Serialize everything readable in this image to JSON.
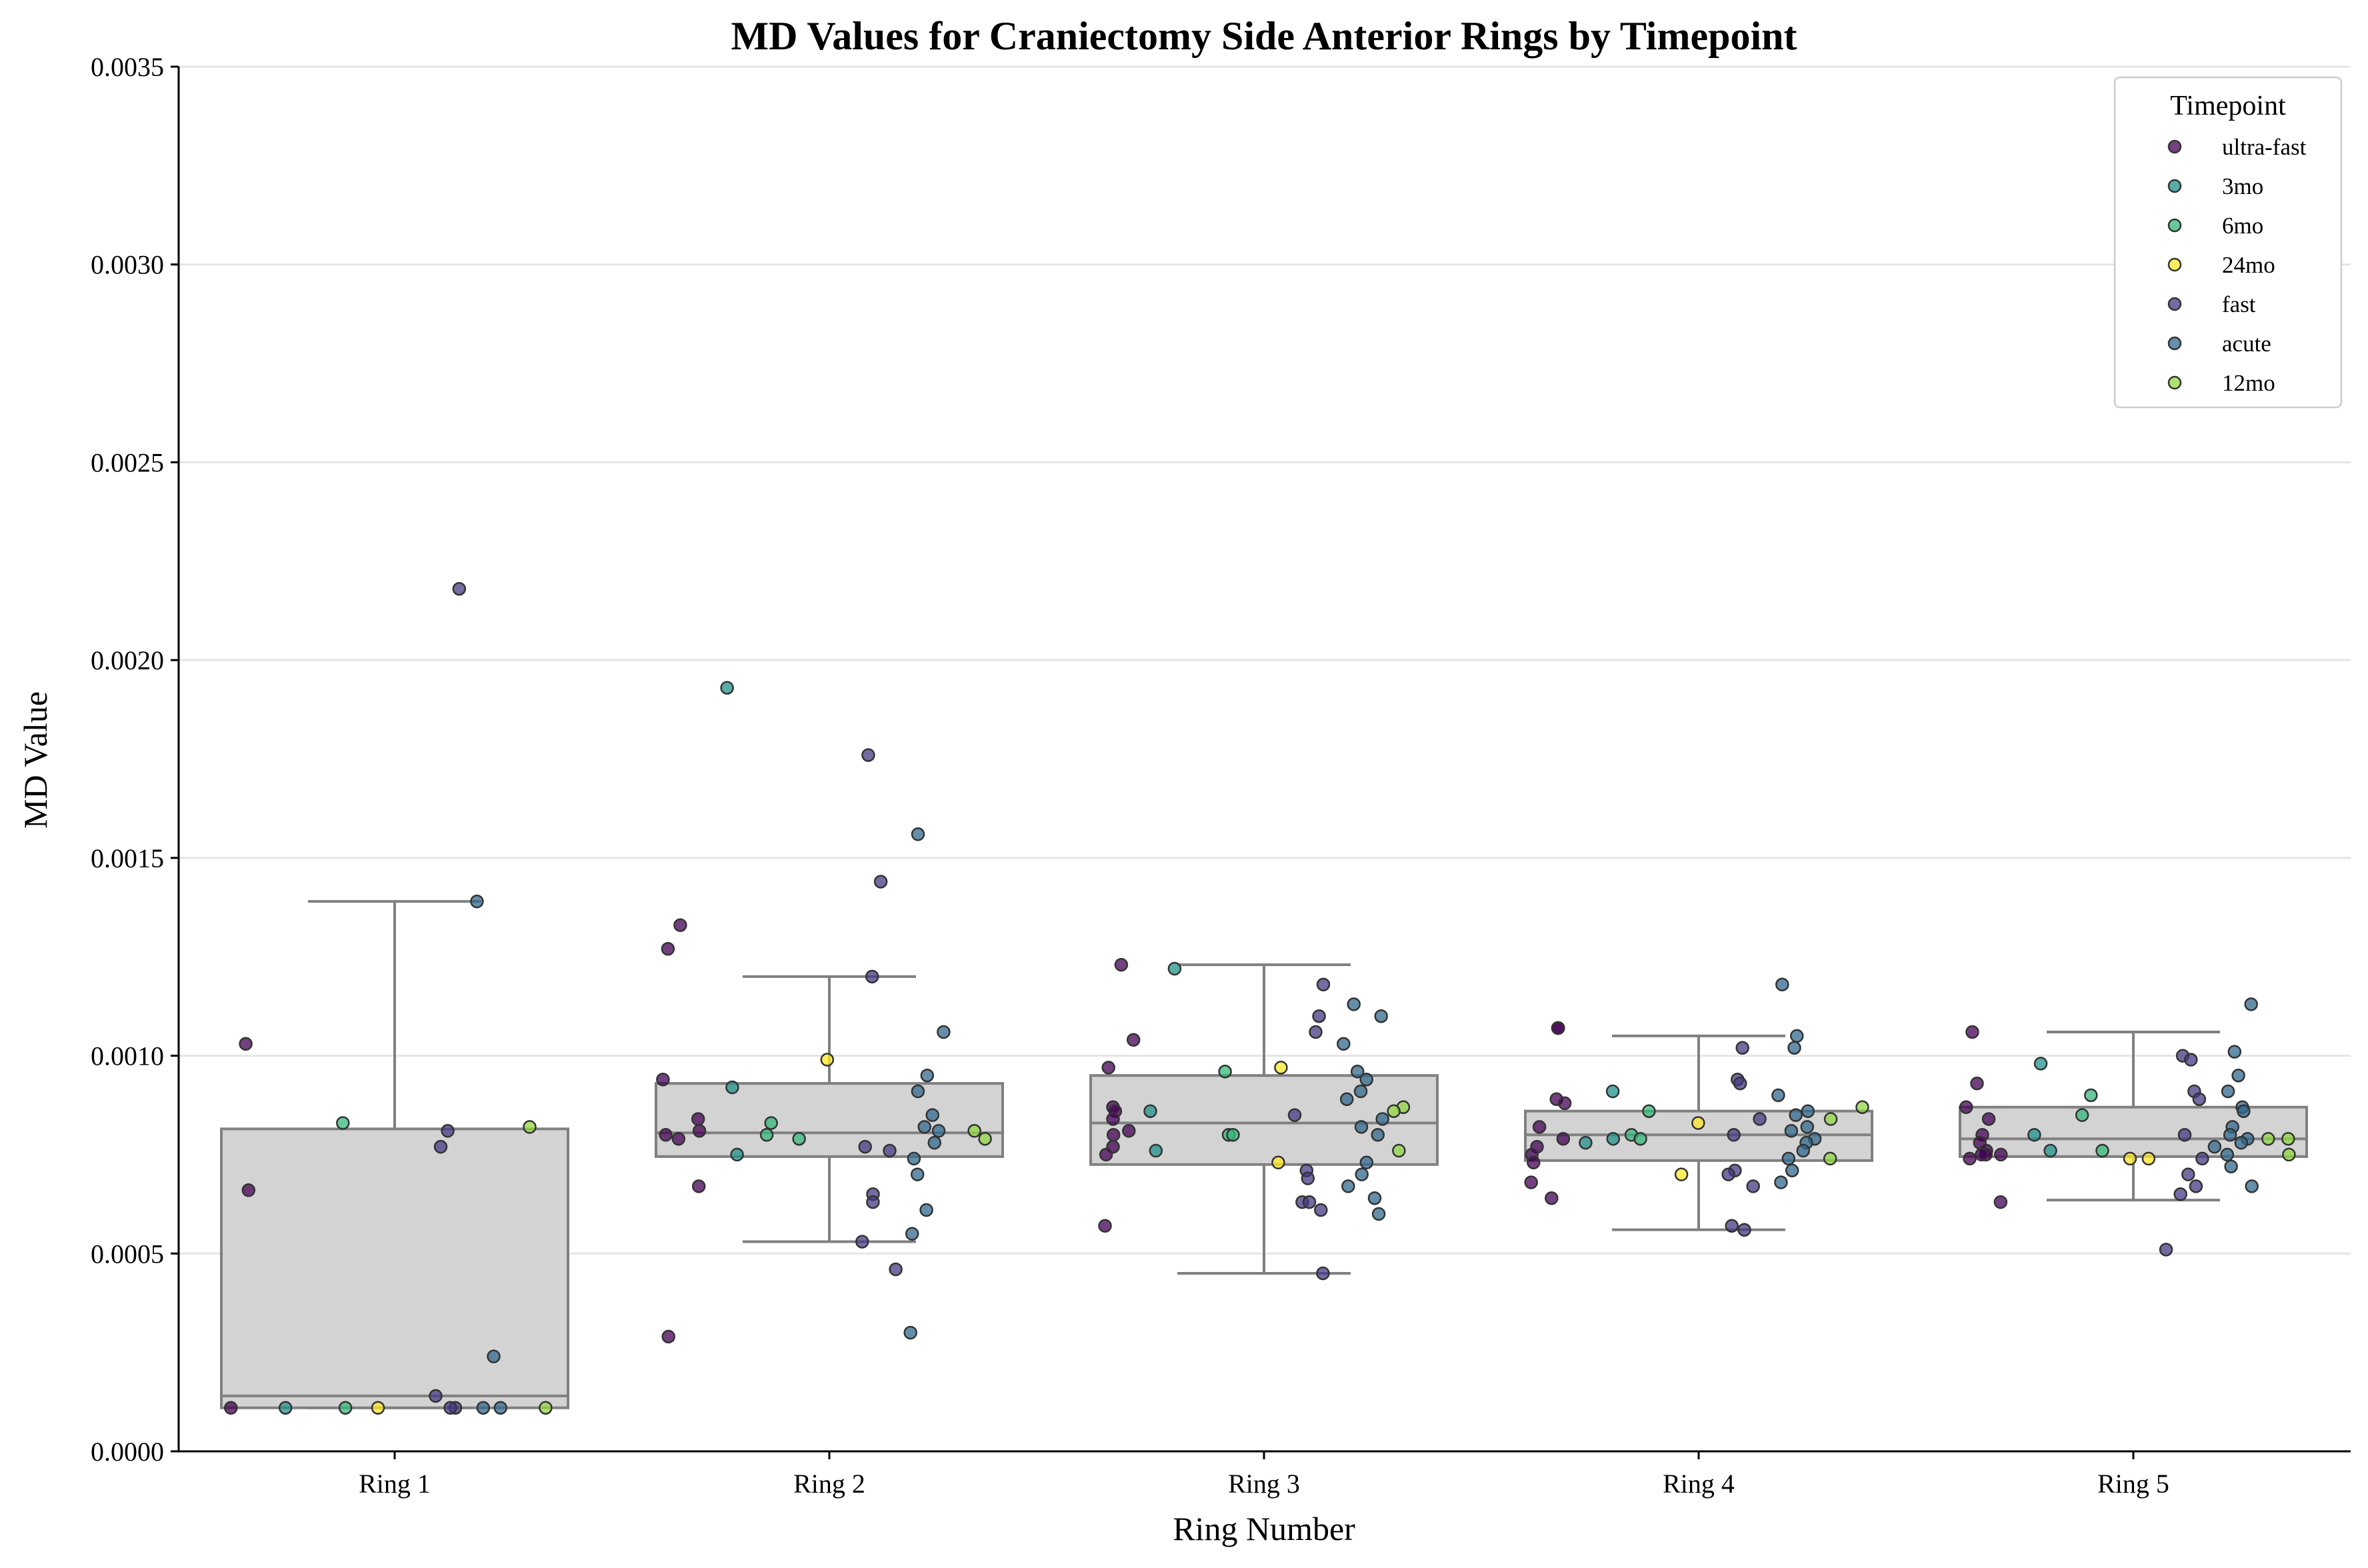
{
  "chart_data": {
    "type": "box+strip",
    "title": "MD Values for Craniectomy Side Anterior Rings by Timepoint",
    "xlabel": "Ring Number",
    "ylabel": "MD Value",
    "ylim": [
      0,
      0.0035
    ],
    "yticks": [
      "0.0000",
      "0.0005",
      "0.0010",
      "0.0015",
      "0.0020",
      "0.0025",
      "0.0030",
      "0.0035"
    ],
    "ytick_values": [
      0,
      0.0005,
      0.001,
      0.0015,
      0.002,
      0.0025,
      0.003,
      0.0035
    ],
    "grid": "horizontal",
    "legend": {
      "title": "Timepoint",
      "placement": "top-right",
      "entries": [
        {
          "name": "ultra-fast",
          "color": "#440154"
        },
        {
          "name": "3mo",
          "color": "#21918c"
        },
        {
          "name": "6mo",
          "color": "#35b779"
        },
        {
          "name": "24mo",
          "color": "#fde725"
        },
        {
          "name": "fast",
          "color": "#443983"
        },
        {
          "name": "acute",
          "color": "#31688e"
        },
        {
          "name": "12mo",
          "color": "#90d743"
        }
      ]
    },
    "categories": [
      "Ring 1",
      "Ring 2",
      "Ring 3",
      "Ring 4",
      "Ring 5"
    ],
    "boxes": [
      {
        "category": "Ring 1",
        "whisker_low": 0.00011,
        "q1": 0.00011,
        "median": 0.00014,
        "q3": 0.000815,
        "whisker_high": 0.00139
      },
      {
        "category": "Ring 2",
        "whisker_low": 0.00053,
        "q1": 0.000745,
        "median": 0.000805,
        "q3": 0.00093,
        "whisker_high": 0.0012
      },
      {
        "category": "Ring 3",
        "whisker_low": 0.00045,
        "q1": 0.000725,
        "median": 0.00083,
        "q3": 0.00095,
        "whisker_high": 0.00123
      },
      {
        "category": "Ring 4",
        "whisker_low": 0.00056,
        "q1": 0.000735,
        "median": 0.0008,
        "q3": 0.00086,
        "whisker_high": 0.00105
      },
      {
        "category": "Ring 5",
        "whisker_low": 0.000635,
        "q1": 0.000745,
        "median": 0.00079,
        "q3": 0.00087,
        "whisker_high": 0.00106
      }
    ],
    "points": [
      {
        "ring": 1,
        "tp": "ultra-fast",
        "v": [
          0.00103,
          0.00066,
          0.00011
        ]
      },
      {
        "ring": 1,
        "tp": "3mo",
        "v": [
          0.00011
        ]
      },
      {
        "ring": 1,
        "tp": "6mo",
        "v": [
          0.00083,
          0.00011
        ]
      },
      {
        "ring": 1,
        "tp": "24mo",
        "v": [
          0.00011
        ]
      },
      {
        "ring": 1,
        "tp": "fast",
        "v": [
          0.00218,
          0.00081,
          0.00077,
          0.00014,
          0.00011,
          0.00011
        ]
      },
      {
        "ring": 1,
        "tp": "acute",
        "v": [
          0.00139,
          0.00024,
          0.00011,
          0.00011
        ]
      },
      {
        "ring": 1,
        "tp": "12mo",
        "v": [
          0.00082,
          0.00011
        ]
      },
      {
        "ring": 2,
        "tp": "ultra-fast",
        "v": [
          0.00133,
          0.00127,
          0.00094,
          0.00084,
          0.00081,
          0.0008,
          0.00079,
          0.00067,
          0.00029
        ]
      },
      {
        "ring": 2,
        "tp": "3mo",
        "v": [
          0.00193,
          0.00092,
          0.00075
        ]
      },
      {
        "ring": 2,
        "tp": "6mo",
        "v": [
          0.00083,
          0.0008,
          0.00079
        ]
      },
      {
        "ring": 2,
        "tp": "24mo",
        "v": [
          0.00099
        ]
      },
      {
        "ring": 2,
        "tp": "fast",
        "v": [
          0.00176,
          0.00144,
          0.0012,
          0.00077,
          0.00076,
          0.00065,
          0.00063,
          0.00053,
          0.00046
        ]
      },
      {
        "ring": 2,
        "tp": "acute",
        "v": [
          0.00156,
          0.00106,
          0.00095,
          0.00091,
          0.00085,
          0.00082,
          0.00081,
          0.00078,
          0.00074,
          0.0007,
          0.00061,
          0.00055,
          0.0003
        ]
      },
      {
        "ring": 2,
        "tp": "12mo",
        "v": [
          0.00081,
          0.00079
        ]
      },
      {
        "ring": 3,
        "tp": "ultra-fast",
        "v": [
          0.00123,
          0.00104,
          0.00097,
          0.00087,
          0.00086,
          0.00084,
          0.00081,
          0.0008,
          0.00077,
          0.00075,
          0.00057
        ]
      },
      {
        "ring": 3,
        "tp": "3mo",
        "v": [
          0.00122,
          0.00086,
          0.00076
        ]
      },
      {
        "ring": 3,
        "tp": "6mo",
        "v": [
          0.00096,
          0.0008,
          0.0008
        ]
      },
      {
        "ring": 3,
        "tp": "24mo",
        "v": [
          0.00097,
          0.00073
        ]
      },
      {
        "ring": 3,
        "tp": "fast",
        "v": [
          0.00118,
          0.0011,
          0.00106,
          0.00085,
          0.00071,
          0.00069,
          0.00063,
          0.00063,
          0.00061,
          0.00045
        ]
      },
      {
        "ring": 3,
        "tp": "acute",
        "v": [
          0.00113,
          0.0011,
          0.00103,
          0.00096,
          0.00094,
          0.00091,
          0.00089,
          0.00084,
          0.00082,
          0.0008,
          0.00073,
          0.0007,
          0.00067,
          0.00064,
          0.0006
        ]
      },
      {
        "ring": 3,
        "tp": "12mo",
        "v": [
          0.00087,
          0.00086,
          0.00076
        ]
      },
      {
        "ring": 4,
        "tp": "ultra-fast",
        "v": [
          0.00107,
          0.00107,
          0.00089,
          0.00088,
          0.00082,
          0.00079,
          0.00077,
          0.00075,
          0.00073,
          0.00068,
          0.00064
        ]
      },
      {
        "ring": 4,
        "tp": "3mo",
        "v": [
          0.00091,
          0.00079,
          0.00078
        ]
      },
      {
        "ring": 4,
        "tp": "6mo",
        "v": [
          0.00086,
          0.0008,
          0.00079
        ]
      },
      {
        "ring": 4,
        "tp": "24mo",
        "v": [
          0.00083,
          0.0007
        ]
      },
      {
        "ring": 4,
        "tp": "fast",
        "v": [
          0.00102,
          0.00094,
          0.00093,
          0.00084,
          0.0008,
          0.00071,
          0.0007,
          0.00067,
          0.00057,
          0.00056
        ]
      },
      {
        "ring": 4,
        "tp": "acute",
        "v": [
          0.00118,
          0.00105,
          0.00102,
          0.0009,
          0.00086,
          0.00085,
          0.00082,
          0.00081,
          0.00079,
          0.00078,
          0.00076,
          0.00074,
          0.00071,
          0.00068
        ]
      },
      {
        "ring": 4,
        "tp": "12mo",
        "v": [
          0.00087,
          0.00084,
          0.00074
        ]
      },
      {
        "ring": 5,
        "tp": "ultra-fast",
        "v": [
          0.00106,
          0.00093,
          0.00087,
          0.00084,
          0.0008,
          0.00078,
          0.00076,
          0.00075,
          0.00075,
          0.00075,
          0.00074,
          0.00063
        ]
      },
      {
        "ring": 5,
        "tp": "3mo",
        "v": [
          0.00098,
          0.0008,
          0.00076
        ]
      },
      {
        "ring": 5,
        "tp": "6mo",
        "v": [
          0.0009,
          0.00085,
          0.00076
        ]
      },
      {
        "ring": 5,
        "tp": "24mo",
        "v": [
          0.00074,
          0.00074
        ]
      },
      {
        "ring": 5,
        "tp": "fast",
        "v": [
          0.001,
          0.00099,
          0.00091,
          0.00089,
          0.0008,
          0.00074,
          0.0007,
          0.00067,
          0.00065,
          0.00051
        ]
      },
      {
        "ring": 5,
        "tp": "acute",
        "v": [
          0.00113,
          0.00101,
          0.00095,
          0.00091,
          0.00087,
          0.00086,
          0.00082,
          0.0008,
          0.00079,
          0.00078,
          0.00077,
          0.00075,
          0.00072,
          0.00067
        ]
      },
      {
        "ring": 5,
        "tp": "12mo",
        "v": [
          0.00079,
          0.00079,
          0.00075
        ]
      }
    ]
  }
}
